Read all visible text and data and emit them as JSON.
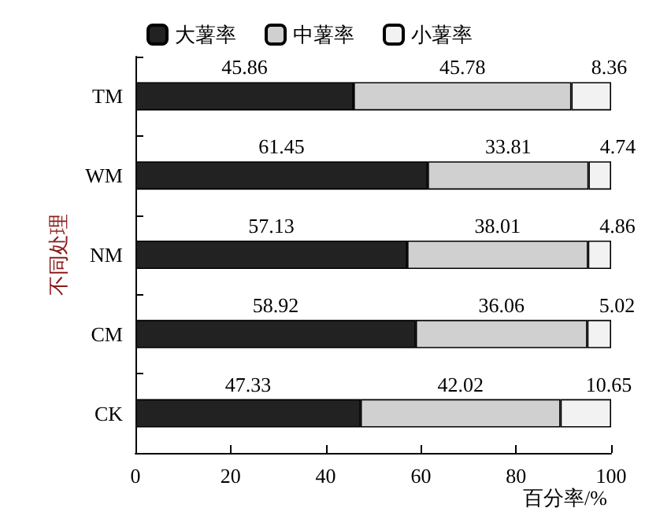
{
  "chart_data": {
    "type": "bar",
    "orientation": "horizontal",
    "stacked": true,
    "ylabel": "不同处理",
    "xlabel": "百分率/%",
    "categories": [
      "TM",
      "WM",
      "NM",
      "CM",
      "CK"
    ],
    "series": [
      {
        "name": "大薯率",
        "color": "#222222",
        "values": [
          45.86,
          61.45,
          57.13,
          58.92,
          47.33
        ]
      },
      {
        "name": "中薯率",
        "color": "#d0d0d0",
        "values": [
          45.78,
          33.81,
          38.01,
          36.06,
          42.02
        ]
      },
      {
        "name": "小薯率",
        "color": "#f2f2f2",
        "values": [
          8.36,
          4.74,
          4.86,
          5.02,
          10.65
        ]
      }
    ],
    "xlim": [
      0,
      100
    ],
    "xticks": [
      0,
      20,
      40,
      60,
      80,
      100
    ],
    "data_labels": true,
    "legend": "top",
    "grid": false
  }
}
